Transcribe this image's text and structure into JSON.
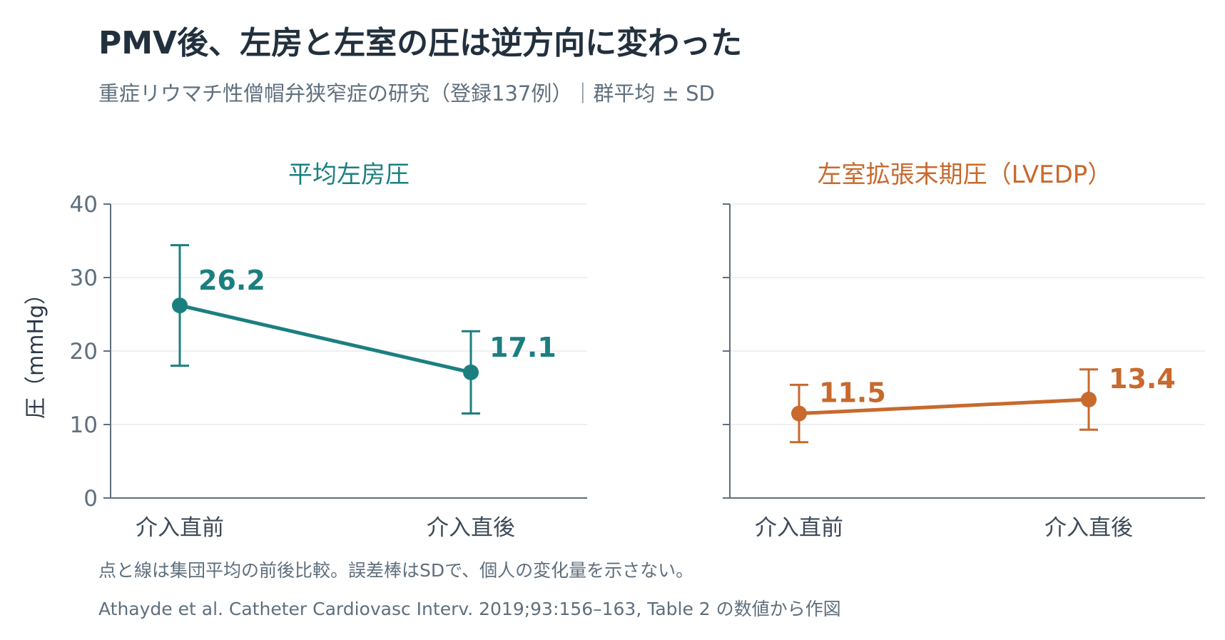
{
  "title": "PMV後、左房と左室の圧は逆方向に変わった",
  "subtitle": "重症リウマチ性僧帽弁狭窄症の研究（登録137例）｜群平均 ± SD",
  "footer": {
    "note": "点と線は集団平均の前後比較。誤差棒はSDで、個人の変化量を示さない。",
    "source": "Athayde et al. Catheter Cardiovasc Interv. 2019;93:156–163, Table 2 の数値から作図"
  },
  "colors": {
    "teal": "#1b7f80",
    "orange": "#c8692d",
    "axis": "#5f6f7e",
    "grid": "#ececec"
  },
  "chart_data": [
    {
      "type": "line",
      "title": "平均左房圧",
      "ylabel": "圧（mmHg）",
      "ylim": [
        0,
        40
      ],
      "yticks": [
        "0",
        "10",
        "20",
        "30",
        "40"
      ],
      "categories": [
        "介入直前",
        "介入直後"
      ],
      "values": [
        26.2,
        17.1
      ],
      "error_low": [
        18.0,
        11.5
      ],
      "error_high": [
        34.4,
        22.7
      ],
      "value_labels": [
        "26.2",
        "17.1"
      ],
      "color": "#1b7f80",
      "grid": true
    },
    {
      "type": "line",
      "title": "左室拡張末期圧（LVEDP）",
      "ylim": [
        0,
        40
      ],
      "categories": [
        "介入直前",
        "介入直後"
      ],
      "values": [
        11.5,
        13.4
      ],
      "error_low": [
        7.6,
        9.3
      ],
      "error_high": [
        15.4,
        17.5
      ],
      "value_labels": [
        "11.5",
        "13.4"
      ],
      "color": "#c8692d",
      "grid": true
    }
  ]
}
